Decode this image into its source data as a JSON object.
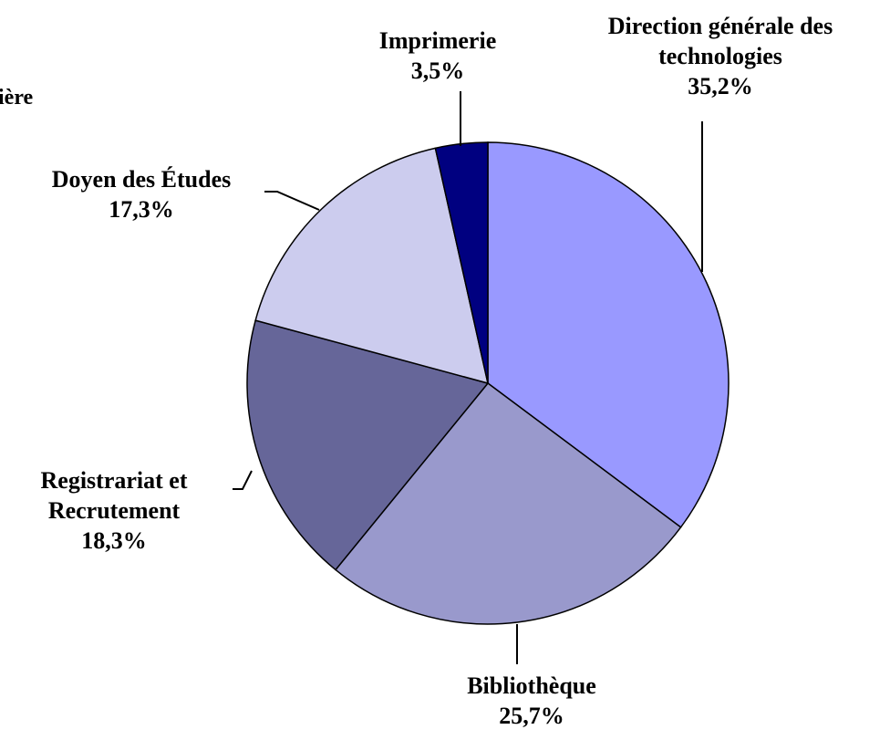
{
  "chart_data": {
    "type": "pie",
    "title": "ière",
    "categories": [
      "Direction générale des technologies",
      "Bibliothèque",
      "Registrariat et Recrutement",
      "Doyen des Études",
      "Imprimerie"
    ],
    "values": [
      35.2,
      25.7,
      18.3,
      17.3,
      3.5
    ],
    "value_labels": [
      "35,2%",
      "25,7%",
      "18,3%",
      "17,3%",
      "3,5%"
    ],
    "colors": [
      "#9999ff",
      "#9999cc",
      "#666699",
      "#ccccee",
      "#000080"
    ]
  }
}
